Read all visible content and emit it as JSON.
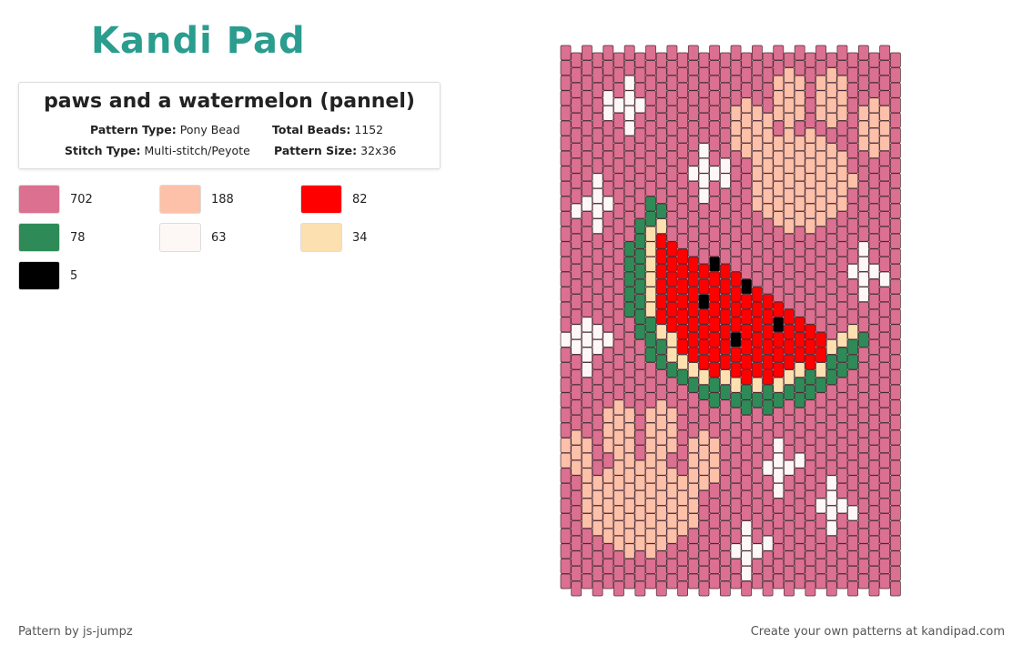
{
  "logo": "Kandi Pad",
  "header": {
    "title": "paws and a watermelon (pannel)",
    "fields": [
      {
        "label": "Pattern Type:",
        "value": "Pony Bead"
      },
      {
        "label": "Total Beads:",
        "value": "1152"
      },
      {
        "label": "Stitch Type:",
        "value": "Multi-stitch/Peyote"
      },
      {
        "label": "Pattern Size:",
        "value": "32x36"
      }
    ]
  },
  "palette": [
    {
      "color": "#dc7090",
      "count": "702"
    },
    {
      "color": "#fdc0a8",
      "count": "188"
    },
    {
      "color": "#fe0000",
      "count": "82"
    },
    {
      "color": "#2e8b57",
      "count": "78"
    },
    {
      "color": "#fdf8f6",
      "count": "63"
    },
    {
      "color": "#fde0b0",
      "count": "34"
    },
    {
      "color": "#000000",
      "count": "5"
    }
  ],
  "footer": {
    "left": "Pattern by js-jumpz",
    "right": "Create your own patterns at kandipad.com"
  }
}
